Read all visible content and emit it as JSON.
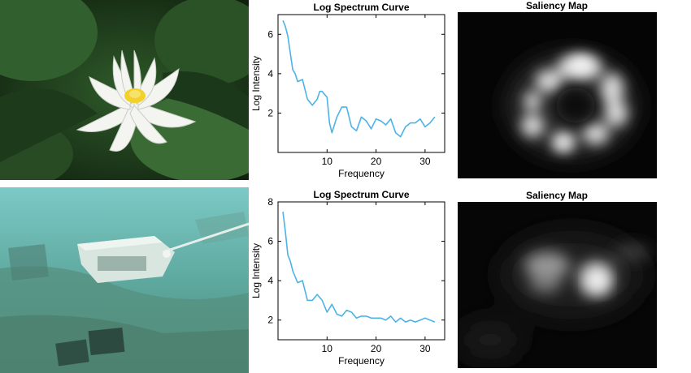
{
  "chart_data": [
    {
      "type": "line",
      "title": "Log Spectrum Curve",
      "xlabel": "Frequency",
      "ylabel": "Log Intensity",
      "xlim": [
        0,
        34
      ],
      "ylim": [
        0,
        7
      ],
      "xticks": [
        "10",
        "20",
        "30"
      ],
      "yticks": [
        "2",
        "4",
        "6"
      ],
      "grid": false,
      "x": [
        1,
        1.5,
        2,
        3,
        3.5,
        4,
        5,
        6,
        7,
        8,
        8.5,
        9,
        10,
        10.5,
        11,
        12,
        13,
        14,
        15,
        16,
        17,
        18,
        19,
        20,
        21,
        22,
        23,
        24,
        25,
        26,
        27,
        28,
        29,
        30,
        31,
        32
      ],
      "y": [
        6.7,
        6.4,
        5.9,
        4.2,
        4.0,
        3.6,
        3.7,
        2.7,
        2.4,
        2.7,
        3.1,
        3.1,
        2.8,
        1.5,
        1.0,
        1.8,
        2.3,
        2.3,
        1.3,
        1.1,
        1.8,
        1.6,
        1.2,
        1.7,
        1.6,
        1.4,
        1.7,
        1.0,
        0.8,
        1.3,
        1.5,
        1.5,
        1.7,
        1.3,
        1.5,
        1.8
      ],
      "color": "#4db3e6"
    },
    {
      "type": "line",
      "title": "Log Spectrum Curve",
      "xlabel": "Frequency",
      "ylabel": "Log Intensity",
      "xlim": [
        0,
        34
      ],
      "ylim": [
        1,
        8
      ],
      "xticks": [
        "10",
        "20",
        "30"
      ],
      "yticks": [
        "2",
        "4",
        "6",
        "8"
      ],
      "grid": false,
      "x": [
        1,
        1.5,
        2,
        2.5,
        3,
        4,
        5,
        6,
        7,
        8,
        9,
        10,
        11,
        12,
        13,
        14,
        15,
        16,
        17,
        18,
        19,
        20,
        21,
        22,
        23,
        24,
        25,
        26,
        27,
        28,
        29,
        30,
        31,
        32
      ],
      "y": [
        7.5,
        6.5,
        5.3,
        5.0,
        4.5,
        3.9,
        4.0,
        3.0,
        3.0,
        3.3,
        3.0,
        2.4,
        2.8,
        2.3,
        2.2,
        2.5,
        2.4,
        2.1,
        2.2,
        2.2,
        2.1,
        2.1,
        2.1,
        2.0,
        2.2,
        1.9,
        2.1,
        1.9,
        2.0,
        1.9,
        2.0,
        2.1,
        2.0,
        1.9
      ],
      "color": "#4db3e6"
    }
  ],
  "saliency": {
    "title_top": "Saliency Map",
    "title_bottom": "Saliency Map"
  },
  "icons": {
    "photo_top": "water-lily-photo",
    "photo_bottom": "underwater-rov-photo"
  }
}
